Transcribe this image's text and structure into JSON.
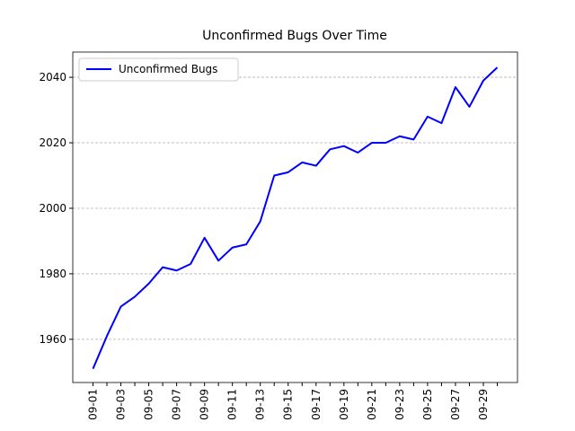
{
  "chart_data": {
    "type": "line",
    "title": "Unconfirmed Bugs Over Time",
    "categories": [
      "09-01",
      null,
      "09-03",
      null,
      "09-05",
      null,
      "09-07",
      null,
      "09-09",
      null,
      "09-11",
      null,
      "09-13",
      null,
      "09-15",
      null,
      "09-17",
      null,
      "09-19",
      null,
      "09-21",
      null,
      "09-23",
      null,
      "09-25",
      null,
      "09-27",
      null,
      "09-29",
      null
    ],
    "series": [
      {
        "name": "Unconfirmed Bugs",
        "color": "#0000ff",
        "values": [
          1951,
          1961,
          1970,
          1973,
          1977,
          1982,
          1981,
          1983,
          1991,
          1984,
          1988,
          1989,
          1996,
          2010,
          2011,
          2014,
          2013,
          2018,
          2019,
          2017,
          2020,
          2020,
          2022,
          2021,
          2028,
          2026,
          2037,
          2031,
          2039,
          2043
        ]
      }
    ],
    "ylim": [
      1946.8,
      2047.7
    ],
    "yticks": [
      1960,
      1980,
      2000,
      2020,
      2040
    ],
    "grid": true,
    "legend": "upper left"
  }
}
